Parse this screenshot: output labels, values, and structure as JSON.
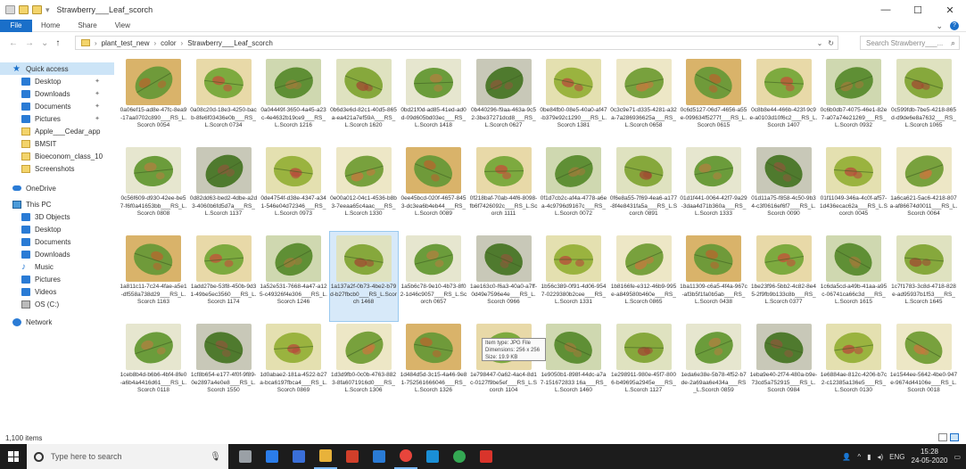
{
  "window": {
    "title": "Strawberry___Leaf_scorch",
    "controls": [
      "—",
      "☐",
      "✕"
    ]
  },
  "ribbon": {
    "tabs": [
      "File",
      "Home",
      "Share",
      "View"
    ],
    "expand_icon": "chevron-down-icon",
    "help_icon": "?"
  },
  "address": {
    "path": [
      "plant_test_new",
      "color",
      "Strawberry___Leaf_scorch"
    ],
    "search_placeholder": "Search Strawberry___..."
  },
  "navpane": {
    "items": [
      {
        "label": "Quick access",
        "icon": "star-icon",
        "section": true,
        "selected": true
      },
      {
        "label": "Desktop",
        "icon": "desktop-icon",
        "pinned": true
      },
      {
        "label": "Downloads",
        "icon": "download-icon",
        "pinned": true
      },
      {
        "label": "Documents",
        "icon": "documents-icon",
        "pinned": true
      },
      {
        "label": "Pictures",
        "icon": "pictures-icon",
        "pinned": true
      },
      {
        "label": "Apple___Cedar_app",
        "icon": "folder-icon"
      },
      {
        "label": "BMSIT",
        "icon": "folder-icon"
      },
      {
        "label": "Bioeconom_class_10",
        "icon": "folder-icon"
      },
      {
        "label": "Screenshots",
        "icon": "folder-icon"
      },
      {
        "label": "OneDrive",
        "icon": "cloud-icon",
        "section": true
      },
      {
        "label": "This PC",
        "icon": "pc-icon",
        "section": true
      },
      {
        "label": "3D Objects",
        "icon": "cube-icon"
      },
      {
        "label": "Desktop",
        "icon": "desktop-icon"
      },
      {
        "label": "Documents",
        "icon": "documents-icon"
      },
      {
        "label": "Downloads",
        "icon": "download-icon"
      },
      {
        "label": "Music",
        "icon": "music-icon"
      },
      {
        "label": "Pictures",
        "icon": "pictures-icon"
      },
      {
        "label": "Videos",
        "icon": "video-icon"
      },
      {
        "label": "OS (C:)",
        "icon": "drive-icon"
      },
      {
        "label": "Network",
        "icon": "network-icon",
        "section": true
      }
    ]
  },
  "files": [
    {
      "name": "0a06ef15-ad8e-47fc-8ea9-17aa0702c890___RS_L.Scorch 0054"
    },
    {
      "name": "0a08c20d-18e3-4250-bacb-8fe6f03436e0b___RS_L.Scorch 0734"
    },
    {
      "name": "0a04449f-3650-4a45-a23c-4e4632b19ce9___RS_L.Scorch 1216"
    },
    {
      "name": "0b6d3e6d-82c1-40d5-865a-ea421a7ef59A___RS_L.Scorch 1620"
    },
    {
      "name": "0bd21f0d-ad85-41ed-ad0d-09d605bd03ec___RS_L.Scorch 1418"
    },
    {
      "name": "0b440296-f9aa-463a-9c52-3be37271dcd8___RS_L.Scorch 0627"
    },
    {
      "name": "0be84fb0-08e5-40a0-af47-b379e92c1290___RS_L.Scorch 1381"
    },
    {
      "name": "0c3c9e71-d335-4281-a32a-7a286936625a___RS_L.Scorch 0658"
    },
    {
      "name": "0c6d5127-06d7-4656-a55e-099634f5277f___RS_L.Scorch 0615"
    },
    {
      "name": "0c8b8e44-466b-423f-9c9e-a0103d10f6c2___RS_L.Scorch 1407"
    },
    {
      "name": "0c6b0db7-4075-46e1-82e7-a07a74e21269___RS_L.Scorch 0932"
    },
    {
      "name": "0c599fdb-7be5-4218-865d-d9de6e8a7632___RS_L.Scorch 1065"
    },
    {
      "name": "0c56f609-d930-42ee-be57-f6f0a41653bb___RS_L.Scorch 0808"
    },
    {
      "name": "0d82dd63-bed2-4dbe-a2d3-4060b6fd5d7a___RS_L.Scorch 1137"
    },
    {
      "name": "0de4754f-d38e-4347-a341-546e04d72346___RS_L.Scorch 0973"
    },
    {
      "name": "0e00a012-04c1-4536-b8b3-7eeaa65c4aac___RS_L.Scorch 1330"
    },
    {
      "name": "0ee45bcd-020f-4657-8453-dc3ea6b4eb44___RS_L.Scorch 0089"
    },
    {
      "name": "0f218baf-70ab-44f6-8098-fb6f7426092c___RS_L.Scorch 1111"
    },
    {
      "name": "0f1d7cb2c-af4a-4778-a6ea-4c9796d9167c___RS_L.Scorch 0072"
    },
    {
      "name": "0f6e8a55-7f69-4ea6-a177-8f4e8431fa5a___RS_L.Scorch 0891"
    },
    {
      "name": "01d1f441-0064-42f7-9a29-3daa4d71b360a___RS_L.Scorch 1333"
    },
    {
      "name": "01d11a75-f858-4c50-9b34-c3f0616ef6f7___RS_L.Scorch 0090"
    },
    {
      "name": "01f11049-346a-4c0f-af57-1d436ecac62a___RS_L.Scorch 0045"
    },
    {
      "name": "1a6ca621-5ac6-4218-807a-af86674d0011___RS_L.Scorch 0064"
    },
    {
      "name": "1a811c11-7c24-4fae-a5e1-df558a738d29___RS_L.Scorch 1163"
    },
    {
      "name": "1add27be-53f8-450b-9d31-49be5ec3560___RS_L.Scorch 1174"
    },
    {
      "name": "1a52e531-7668-4a47-a125-c49326f4e306___RS_L.Scorch 1246"
    },
    {
      "name": "1a137a2f-0b73-4be2-b79d-b27fbcb0___RS_L.Scorch 1468"
    },
    {
      "name": "1a5b6c78-9e10-4b73-8f02-1d46c9057___RS_L.Scorch 0657"
    },
    {
      "name": "1ae163c0-f6a3-40a0-a7ff-0d49e7596e4e___RS_L.Scorch 0966"
    },
    {
      "name": "1b56c389-0f91-4d06-9547-0229380b2cee___RS_L.Scorch 1331"
    },
    {
      "name": "1b8166fe-e312-46b9-995e-a849580b460e___RS_L.Scorch 0865"
    },
    {
      "name": "1ba11309-c6a5-4f4a-967c-af3b5f1fa0b5ab___RS_L.Scorch 0438"
    },
    {
      "name": "1be23f96-5bb2-4c82-8e45-2f9fb9b133c8b___RS_L.Scorch 0377"
    },
    {
      "name": "1c6da5cd-a49b-41aa-a95c-06741ca66c3d___RS_L.Scorch 1615"
    },
    {
      "name": "1c7f1783-3c8d-4718-828e-ad95937b1f53___RS_L.Scorch 1645"
    },
    {
      "name": "1ceb8b4d-b6b6-4bf4-8fe0-a6b4a4416d61___RS_L.Scorch 0118"
    },
    {
      "name": "1cf8b654-e177-4f0f-9f89-0e2897a4e0e8___RS_L.Scorch 1550"
    },
    {
      "name": "1d0abae2-181a-4522-b27a-bca6197fbca4___RS_L.Scorch 0869"
    },
    {
      "name": "1d3d9fb0-0c0b-4763-8823-8fa6071916d0___RS_L.Scorch 1306"
    },
    {
      "name": "1d484d5d-3c15-4a46-9e81-752561666046___RS_L.Scorch 1326"
    },
    {
      "name": "1e798447-0a62-4ac4-8d1c-0127f9be5ef___RS_L.Scorch 1104"
    },
    {
      "name": "1e9050b1-898f-44dc-a7a7-151672833 16a___RS_L.Scorch 1460"
    },
    {
      "name": "1e298911-980e-45f7-8006-b49695a2945e___RS_L.Scorch 1127"
    },
    {
      "name": "1eda6e38e-5b78-4f52-b7de-2a69aa6e434a___RS_L.Scorch 0859"
    },
    {
      "name": "1eba9e40-2f74-480a-b9e-73cd5a752915___RS_L.Scorch 0984"
    },
    {
      "name": "1e6884ae-812c-4206-b7c2-c12385a136e5___RS_L.Scorch 0130"
    },
    {
      "name": "1e1544ee-5642-4be0-947e-9674d44106e___RS_L.Scorch 0018"
    }
  ],
  "tooltip": {
    "item_type": "Item type: JPG File",
    "dimensions": "Dimensions: 256 x 256",
    "size": "Size: 19.9 KB"
  },
  "status": {
    "count": "1,100 items"
  },
  "taskbar": {
    "search_placeholder": "Type here to search",
    "apps": [
      "task-view-icon",
      "edge-icon",
      "store-icon",
      "explorer-icon",
      "office-icon",
      "mail-icon",
      "chrome-icon",
      "photos-icon",
      "chrome-profile-icon",
      "media-icon"
    ],
    "tray_lang": "ENG",
    "time": "15:28",
    "date": "24-05-2020"
  },
  "colors": {
    "accent": "#1a6fc9",
    "taskbar": "#1c1c1c",
    "selection": "#cce4f7"
  }
}
